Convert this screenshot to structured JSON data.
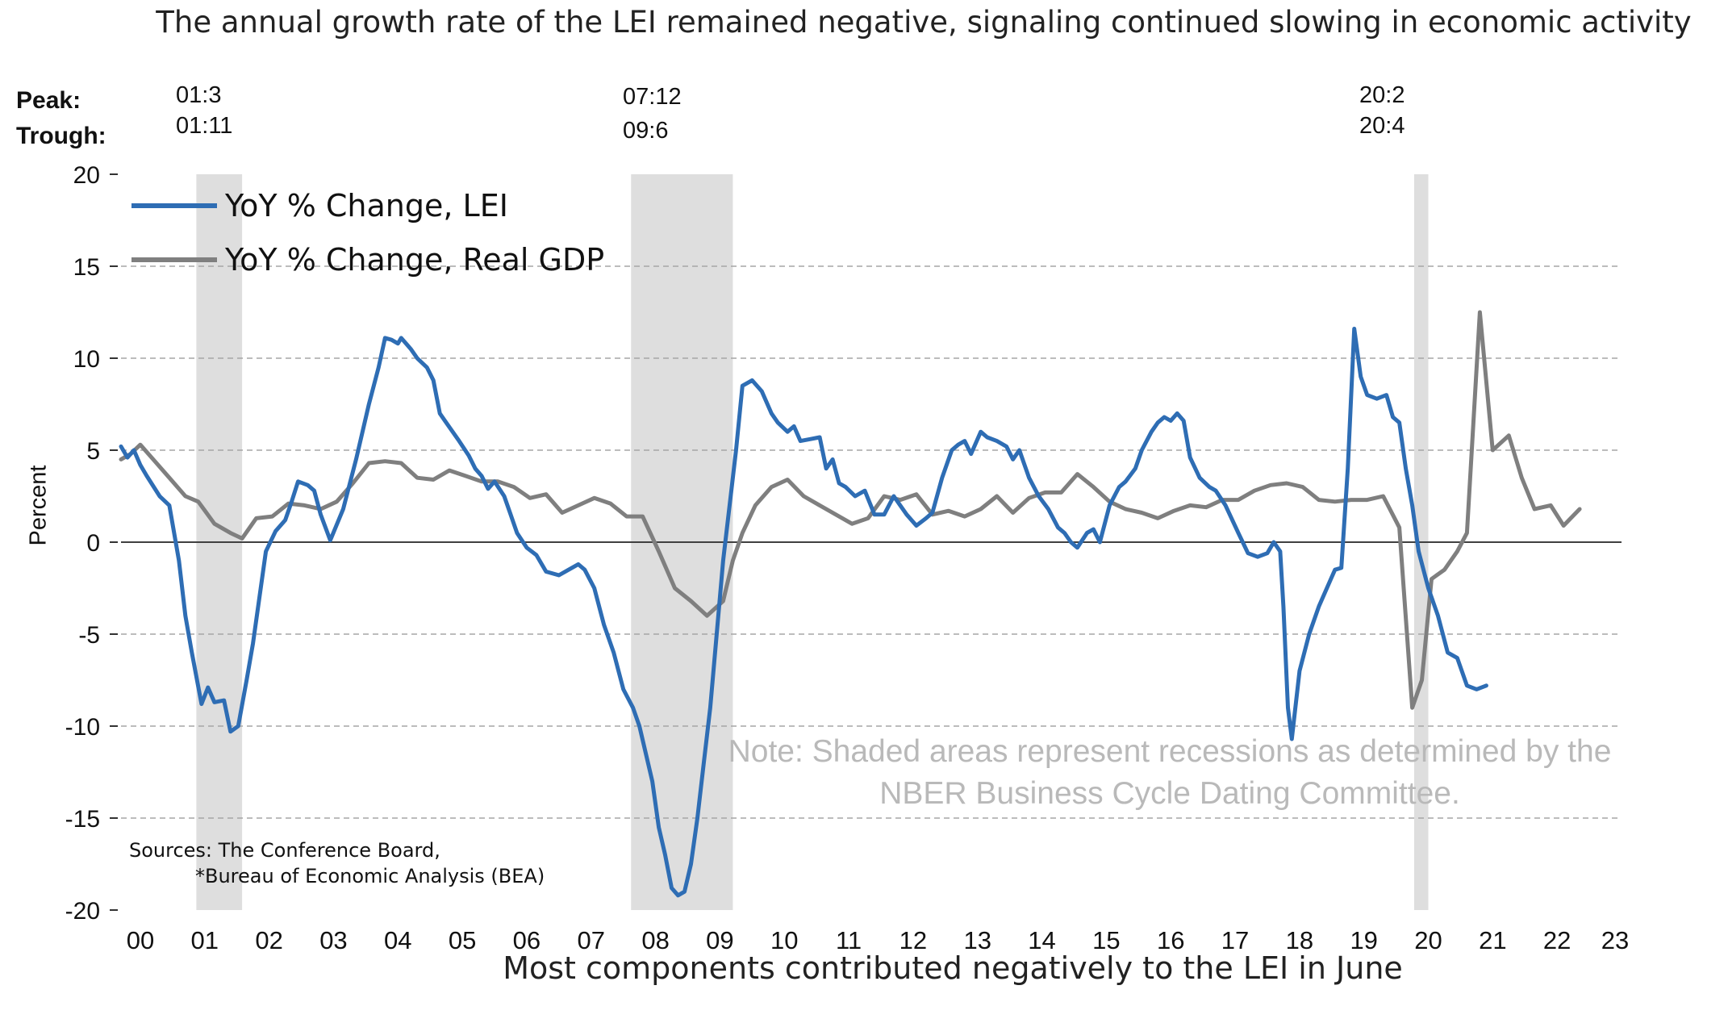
{
  "chart_data": {
    "type": "line",
    "title": "The annual growth rate of the LEI remained negative, signaling continued slowing in economic activity",
    "subtitle": "Most components contributed negatively to the LEI in June",
    "ylabel": "Percent",
    "xlabel": "",
    "ylim": [
      -20,
      20
    ],
    "yticks": [
      20,
      15,
      10,
      5,
      0,
      -5,
      -10,
      -15,
      -20
    ],
    "ytick_labels": [
      "20",
      "15",
      "10",
      "5",
      "0",
      "-5",
      "-10",
      "-15",
      "-20"
    ],
    "xlim": [
      2000.0,
      2023.3
    ],
    "xticks": [
      {
        "label": "00",
        "x": 2000.3
      },
      {
        "label": "01",
        "x": 2001.3
      },
      {
        "label": "02",
        "x": 2002.3
      },
      {
        "label": "03",
        "x": 2003.3
      },
      {
        "label": "04",
        "x": 2004.3
      },
      {
        "label": "05",
        "x": 2005.3
      },
      {
        "label": "06",
        "x": 2006.3
      },
      {
        "label": "07",
        "x": 2007.3
      },
      {
        "label": "08",
        "x": 2008.3
      },
      {
        "label": "09",
        "x": 2009.3
      },
      {
        "label": "10",
        "x": 2010.3
      },
      {
        "label": "11",
        "x": 2011.3
      },
      {
        "label": "12",
        "x": 2012.3
      },
      {
        "label": "13",
        "x": 2013.3
      },
      {
        "label": "14",
        "x": 2014.3
      },
      {
        "label": "15",
        "x": 2015.3
      },
      {
        "label": "16",
        "x": 2016.3
      },
      {
        "label": "17",
        "x": 2017.3
      },
      {
        "label": "18",
        "x": 2018.3
      },
      {
        "label": "19",
        "x": 2019.3
      },
      {
        "label": "20",
        "x": 2020.3
      },
      {
        "label": "21",
        "x": 2021.3
      },
      {
        "label": "22",
        "x": 2022.3
      },
      {
        "label": "23",
        "x": 2023.2
      }
    ],
    "grid": "dashed horizontal lines at 15, 10, 5, -5, -10, -15; solid line at 0",
    "legend_position": "top-left",
    "recessions": [
      {
        "peak": "01:3",
        "trough": "01:11",
        "start": 2001.17,
        "end": 2001.88
      },
      {
        "peak": "07:12",
        "trough": "09:6",
        "start": 2007.92,
        "end": 2009.5
      },
      {
        "peak": "20:2",
        "trough": "20:4",
        "start": 2020.08,
        "end": 2020.3
      }
    ],
    "series": [
      {
        "name": "YoY % Change, LEI",
        "color": "#2e6db4",
        "points": [
          [
            2000.0,
            5.2
          ],
          [
            2000.1,
            4.6
          ],
          [
            2000.2,
            5.0
          ],
          [
            2000.3,
            4.2
          ],
          [
            2000.4,
            3.6
          ],
          [
            2000.6,
            2.5
          ],
          [
            2000.75,
            2.0
          ],
          [
            2000.9,
            -1.0
          ],
          [
            2001.0,
            -4.0
          ],
          [
            2001.1,
            -6.0
          ],
          [
            2001.25,
            -8.8
          ],
          [
            2001.35,
            -7.9
          ],
          [
            2001.45,
            -8.7
          ],
          [
            2001.6,
            -8.6
          ],
          [
            2001.7,
            -10.3
          ],
          [
            2001.82,
            -10.0
          ],
          [
            2001.95,
            -7.5
          ],
          [
            2002.05,
            -5.5
          ],
          [
            2002.15,
            -3.0
          ],
          [
            2002.25,
            -0.5
          ],
          [
            2002.4,
            0.6
          ],
          [
            2002.55,
            1.2
          ],
          [
            2002.65,
            2.2
          ],
          [
            2002.75,
            3.3
          ],
          [
            2002.9,
            3.1
          ],
          [
            2003.0,
            2.8
          ],
          [
            2003.1,
            1.5
          ],
          [
            2003.25,
            0.1
          ],
          [
            2003.45,
            1.8
          ],
          [
            2003.65,
            4.5
          ],
          [
            2003.85,
            7.5
          ],
          [
            2004.0,
            9.5
          ],
          [
            2004.1,
            11.1
          ],
          [
            2004.2,
            11.0
          ],
          [
            2004.3,
            10.8
          ],
          [
            2004.35,
            11.1
          ],
          [
            2004.5,
            10.5
          ],
          [
            2004.6,
            10.0
          ],
          [
            2004.75,
            9.5
          ],
          [
            2004.85,
            8.8
          ],
          [
            2004.95,
            7.0
          ],
          [
            2005.05,
            6.5
          ],
          [
            2005.15,
            6.0
          ],
          [
            2005.25,
            5.5
          ],
          [
            2005.4,
            4.7
          ],
          [
            2005.5,
            4.0
          ],
          [
            2005.6,
            3.6
          ],
          [
            2005.7,
            2.9
          ],
          [
            2005.8,
            3.3
          ],
          [
            2005.95,
            2.5
          ],
          [
            2006.05,
            1.5
          ],
          [
            2006.15,
            0.5
          ],
          [
            2006.3,
            -0.3
          ],
          [
            2006.45,
            -0.7
          ],
          [
            2006.6,
            -1.6
          ],
          [
            2006.8,
            -1.8
          ],
          [
            2006.95,
            -1.5
          ],
          [
            2007.1,
            -1.2
          ],
          [
            2007.2,
            -1.5
          ],
          [
            2007.35,
            -2.5
          ],
          [
            2007.5,
            -4.5
          ],
          [
            2007.65,
            -6.0
          ],
          [
            2007.8,
            -8.0
          ],
          [
            2007.95,
            -9.0
          ],
          [
            2008.05,
            -10.0
          ],
          [
            2008.15,
            -11.5
          ],
          [
            2008.25,
            -13.0
          ],
          [
            2008.35,
            -15.5
          ],
          [
            2008.45,
            -17.0
          ],
          [
            2008.55,
            -18.8
          ],
          [
            2008.65,
            -19.2
          ],
          [
            2008.75,
            -19.0
          ],
          [
            2008.85,
            -17.5
          ],
          [
            2008.95,
            -15.0
          ],
          [
            2009.05,
            -12.0
          ],
          [
            2009.15,
            -9.0
          ],
          [
            2009.25,
            -5.0
          ],
          [
            2009.35,
            -1.0
          ],
          [
            2009.45,
            2.0
          ],
          [
            2009.55,
            5.0
          ],
          [
            2009.65,
            8.5
          ],
          [
            2009.8,
            8.8
          ],
          [
            2009.95,
            8.2
          ],
          [
            2010.1,
            7.0
          ],
          [
            2010.2,
            6.5
          ],
          [
            2010.35,
            6.0
          ],
          [
            2010.45,
            6.3
          ],
          [
            2010.55,
            5.5
          ],
          [
            2010.7,
            5.6
          ],
          [
            2010.85,
            5.7
          ],
          [
            2010.95,
            4.0
          ],
          [
            2011.05,
            4.5
          ],
          [
            2011.15,
            3.2
          ],
          [
            2011.25,
            3.0
          ],
          [
            2011.4,
            2.5
          ],
          [
            2011.55,
            2.8
          ],
          [
            2011.7,
            1.5
          ],
          [
            2011.85,
            1.5
          ],
          [
            2012.0,
            2.5
          ],
          [
            2012.1,
            2.0
          ],
          [
            2012.2,
            1.5
          ],
          [
            2012.35,
            0.9
          ],
          [
            2012.5,
            1.3
          ],
          [
            2012.6,
            1.6
          ],
          [
            2012.75,
            3.5
          ],
          [
            2012.9,
            5.0
          ],
          [
            2013.0,
            5.3
          ],
          [
            2013.1,
            5.5
          ],
          [
            2013.2,
            4.8
          ],
          [
            2013.35,
            6.0
          ],
          [
            2013.45,
            5.7
          ],
          [
            2013.6,
            5.5
          ],
          [
            2013.75,
            5.2
          ],
          [
            2013.85,
            4.5
          ],
          [
            2013.95,
            5.0
          ],
          [
            2014.1,
            3.5
          ],
          [
            2014.25,
            2.5
          ],
          [
            2014.4,
            1.8
          ],
          [
            2014.55,
            0.8
          ],
          [
            2014.65,
            0.5
          ],
          [
            2014.75,
            0.0
          ],
          [
            2014.85,
            -0.3
          ],
          [
            2015.0,
            0.5
          ],
          [
            2015.1,
            0.7
          ],
          [
            2015.2,
            0.0
          ],
          [
            2015.35,
            2.0
          ],
          [
            2015.5,
            3.0
          ],
          [
            2015.6,
            3.3
          ],
          [
            2015.75,
            4.0
          ],
          [
            2015.85,
            5.0
          ],
          [
            2016.0,
            6.0
          ],
          [
            2016.1,
            6.5
          ],
          [
            2016.2,
            6.8
          ],
          [
            2016.3,
            6.6
          ],
          [
            2016.4,
            7.0
          ],
          [
            2016.5,
            6.6
          ],
          [
            2016.6,
            4.6
          ],
          [
            2016.75,
            3.5
          ],
          [
            2016.9,
            3.0
          ],
          [
            2017.0,
            2.8
          ],
          [
            2017.15,
            2.0
          ],
          [
            2017.35,
            0.5
          ],
          [
            2017.5,
            -0.6
          ],
          [
            2017.65,
            -0.8
          ],
          [
            2017.8,
            -0.6
          ],
          [
            2017.9,
            0.0
          ],
          [
            2018.0,
            -0.5
          ],
          [
            2018.05,
            -3.5
          ],
          [
            2018.12,
            -9.0
          ],
          [
            2018.18,
            -10.7
          ],
          [
            2018.3,
            -7.0
          ],
          [
            2018.45,
            -5.0
          ],
          [
            2018.6,
            -3.5
          ],
          [
            2018.75,
            -2.3
          ],
          [
            2018.85,
            -1.5
          ],
          [
            2018.95,
            -1.4
          ],
          [
            2019.05,
            4.0
          ],
          [
            2019.15,
            11.6
          ],
          [
            2019.25,
            9.0
          ],
          [
            2019.35,
            8.0
          ],
          [
            2019.5,
            7.8
          ],
          [
            2019.65,
            8.0
          ],
          [
            2019.75,
            6.8
          ],
          [
            2019.85,
            6.5
          ],
          [
            2019.95,
            4.0
          ],
          [
            2020.05,
            2.0
          ],
          [
            2020.15,
            -0.5
          ],
          [
            2020.3,
            -2.5
          ],
          [
            2020.45,
            -4.0
          ],
          [
            2020.6,
            -6.0
          ],
          [
            2020.75,
            -6.3
          ],
          [
            2020.9,
            -7.8
          ],
          [
            2021.05,
            -8.0
          ],
          [
            2021.2,
            -7.8
          ]
        ]
      },
      {
        "name": "YoY % Change, Real GDP",
        "color": "#7f7f7f",
        "points": [
          [
            2000.0,
            4.5
          ],
          [
            2000.15,
            4.8
          ],
          [
            2000.3,
            5.3
          ],
          [
            2000.5,
            4.5
          ],
          [
            2000.75,
            3.5
          ],
          [
            2001.0,
            2.5
          ],
          [
            2001.2,
            2.2
          ],
          [
            2001.45,
            1.0
          ],
          [
            2001.7,
            0.5
          ],
          [
            2001.88,
            0.2
          ],
          [
            2002.1,
            1.3
          ],
          [
            2002.35,
            1.4
          ],
          [
            2002.6,
            2.1
          ],
          [
            2002.85,
            2.0
          ],
          [
            2003.1,
            1.8
          ],
          [
            2003.35,
            2.2
          ],
          [
            2003.6,
            3.2
          ],
          [
            2003.85,
            4.3
          ],
          [
            2004.1,
            4.4
          ],
          [
            2004.35,
            4.3
          ],
          [
            2004.6,
            3.5
          ],
          [
            2004.85,
            3.4
          ],
          [
            2005.1,
            3.9
          ],
          [
            2005.35,
            3.6
          ],
          [
            2005.6,
            3.3
          ],
          [
            2005.85,
            3.3
          ],
          [
            2006.1,
            3.0
          ],
          [
            2006.35,
            2.4
          ],
          [
            2006.6,
            2.6
          ],
          [
            2006.85,
            1.6
          ],
          [
            2007.1,
            2.0
          ],
          [
            2007.35,
            2.4
          ],
          [
            2007.6,
            2.1
          ],
          [
            2007.85,
            1.4
          ],
          [
            2008.1,
            1.4
          ],
          [
            2008.35,
            -0.5
          ],
          [
            2008.6,
            -2.5
          ],
          [
            2008.85,
            -3.2
          ],
          [
            2009.1,
            -4.0
          ],
          [
            2009.35,
            -3.2
          ],
          [
            2009.5,
            -1.0
          ],
          [
            2009.65,
            0.5
          ],
          [
            2009.85,
            2.0
          ],
          [
            2010.1,
            3.0
          ],
          [
            2010.35,
            3.4
          ],
          [
            2010.6,
            2.5
          ],
          [
            2010.85,
            2.0
          ],
          [
            2011.1,
            1.5
          ],
          [
            2011.35,
            1.0
          ],
          [
            2011.6,
            1.3
          ],
          [
            2011.85,
            2.5
          ],
          [
            2012.1,
            2.3
          ],
          [
            2012.35,
            2.6
          ],
          [
            2012.6,
            1.5
          ],
          [
            2012.85,
            1.7
          ],
          [
            2013.1,
            1.4
          ],
          [
            2013.35,
            1.8
          ],
          [
            2013.6,
            2.5
          ],
          [
            2013.85,
            1.6
          ],
          [
            2014.1,
            2.4
          ],
          [
            2014.35,
            2.7
          ],
          [
            2014.6,
            2.7
          ],
          [
            2014.85,
            3.7
          ],
          [
            2015.1,
            3.0
          ],
          [
            2015.35,
            2.2
          ],
          [
            2015.6,
            1.8
          ],
          [
            2015.85,
            1.6
          ],
          [
            2016.1,
            1.3
          ],
          [
            2016.35,
            1.7
          ],
          [
            2016.6,
            2.0
          ],
          [
            2016.85,
            1.9
          ],
          [
            2017.1,
            2.3
          ],
          [
            2017.35,
            2.3
          ],
          [
            2017.6,
            2.8
          ],
          [
            2017.85,
            3.1
          ],
          [
            2018.1,
            3.2
          ],
          [
            2018.35,
            3.0
          ],
          [
            2018.6,
            2.3
          ],
          [
            2018.85,
            2.2
          ],
          [
            2019.1,
            2.3
          ],
          [
            2019.35,
            2.3
          ],
          [
            2019.6,
            2.5
          ],
          [
            2019.85,
            0.8
          ],
          [
            2020.05,
            -9.0
          ],
          [
            2020.2,
            -7.5
          ],
          [
            2020.35,
            -2.0
          ],
          [
            2020.55,
            -1.5
          ],
          [
            2020.75,
            -0.5
          ],
          [
            2020.9,
            0.5
          ],
          [
            2021.1,
            12.5
          ],
          [
            2021.3,
            5.0
          ],
          [
            2021.55,
            5.8
          ],
          [
            2021.75,
            3.5
          ],
          [
            2021.95,
            1.8
          ],
          [
            2022.2,
            2.0
          ],
          [
            2022.4,
            0.9
          ],
          [
            2022.65,
            1.8
          ]
        ]
      }
    ]
  },
  "labels": {
    "peak": "Peak:",
    "trough": "Trough:"
  },
  "note": "Note: Shaded areas represent recessions as determined by the NBER Business Cycle Dating Committee.",
  "sources_line1": "Sources: The Conference Board,",
  "sources_line2": "*Bureau of Economic Analysis (BEA)"
}
